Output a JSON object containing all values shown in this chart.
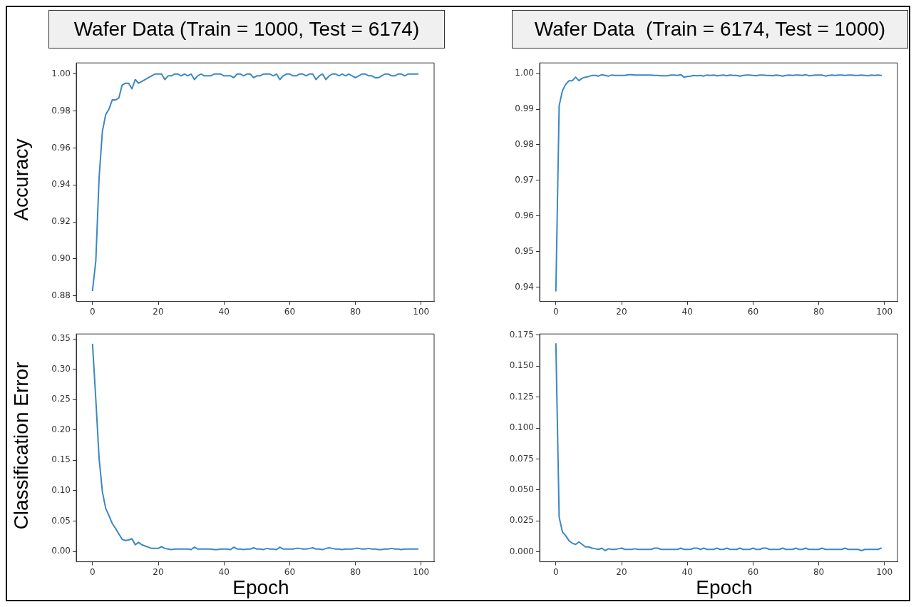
{
  "chart_data": [
    {
      "type": "line",
      "title": "Wafer Data (Train = 1000, Test = 6174)",
      "ylabel": "Accuracy",
      "xlim": [
        -4.95,
        103.95
      ],
      "xticks": [
        0,
        20,
        40,
        60,
        80,
        100
      ],
      "ylim": [
        0.877,
        1.006
      ],
      "yticks": [
        {
          "value": 0.88,
          "label": "0.88"
        },
        {
          "value": 0.9,
          "label": "0.90"
        },
        {
          "value": 0.92,
          "label": "0.92"
        },
        {
          "value": 0.94,
          "label": "0.94"
        },
        {
          "value": 0.96,
          "label": "0.96"
        },
        {
          "value": 0.98,
          "label": "0.98"
        },
        {
          "value": 1.0,
          "label": "1.00"
        }
      ],
      "x": [
        0,
        1,
        2,
        3,
        4,
        5,
        6,
        7,
        8,
        9,
        10,
        11,
        12,
        13,
        14,
        15,
        16,
        17,
        18,
        19,
        20,
        21,
        22,
        23,
        24,
        25,
        26,
        27,
        28,
        29,
        30,
        31,
        32,
        33,
        34,
        35,
        36,
        37,
        38,
        39,
        40,
        41,
        42,
        43,
        44,
        45,
        46,
        47,
        48,
        49,
        50,
        51,
        52,
        53,
        54,
        55,
        56,
        57,
        58,
        59,
        60,
        61,
        62,
        63,
        64,
        65,
        66,
        67,
        68,
        69,
        70,
        71,
        72,
        73,
        74,
        75,
        76,
        77,
        78,
        79,
        80,
        81,
        82,
        83,
        84,
        85,
        86,
        87,
        88,
        89,
        90,
        91,
        92,
        93,
        94,
        95,
        96,
        97,
        98,
        99
      ],
      "series": [
        {
          "color": "#3b87c4",
          "values": [
            0.883,
            0.899,
            0.944,
            0.969,
            0.978,
            0.981,
            0.986,
            0.986,
            0.987,
            0.994,
            0.995,
            0.995,
            0.992,
            0.997,
            0.995,
            0.996,
            0.997,
            0.998,
            0.999,
            1.0,
            1.0,
            1.0,
            0.997,
            0.999,
            0.999,
            1.0,
            1.0,
            0.999,
            1.0,
            0.999,
            1.0,
            0.997,
            0.999,
            1.0,
            0.999,
            0.999,
            0.999,
            1.0,
            1.0,
            1.0,
            0.999,
            0.999,
            0.999,
            0.998,
            1.0,
            1.0,
            0.999,
            1.0,
            1.0,
            0.998,
            0.999,
            0.999,
            1.0,
            1.0,
            1.0,
            0.999,
            1.0,
            0.997,
            0.999,
            1.0,
            1.0,
            0.999,
            0.999,
            1.0,
            1.0,
            0.999,
            1.0,
            1.0,
            0.997,
            0.999,
            1.0,
            0.997,
            0.999,
            1.0,
            1.0,
            0.999,
            1.0,
            0.999,
            1.0,
            0.999,
            0.998,
            0.999,
            1.0,
            1.0,
            0.999,
            0.999,
            0.998,
            0.998,
            0.999,
            1.0,
            1.0,
            0.999,
            0.999,
            1.0,
            1.0,
            0.999,
            1.0,
            1.0,
            1.0,
            1.0
          ]
        }
      ]
    },
    {
      "type": "line",
      "title": "Wafer Data  (Train = 6174, Test = 1000)",
      "xlim": [
        -4.95,
        103.95
      ],
      "xticks": [
        0,
        20,
        40,
        60,
        80,
        100
      ],
      "ylim": [
        0.936,
        1.003
      ],
      "yticks": [
        {
          "value": 0.94,
          "label": "0.94"
        },
        {
          "value": 0.95,
          "label": "0.95"
        },
        {
          "value": 0.96,
          "label": "0.96"
        },
        {
          "value": 0.97,
          "label": "0.97"
        },
        {
          "value": 0.98,
          "label": "0.98"
        },
        {
          "value": 0.99,
          "label": "0.99"
        },
        {
          "value": 1.0,
          "label": "1.00"
        }
      ],
      "x": [
        0,
        1,
        2,
        3,
        4,
        5,
        6,
        7,
        8,
        9,
        10,
        11,
        12,
        13,
        14,
        15,
        16,
        17,
        18,
        19,
        20,
        21,
        22,
        23,
        24,
        25,
        26,
        27,
        28,
        29,
        30,
        31,
        32,
        33,
        34,
        35,
        36,
        37,
        38,
        39,
        40,
        41,
        42,
        43,
        44,
        45,
        46,
        47,
        48,
        49,
        50,
        51,
        52,
        53,
        54,
        55,
        56,
        57,
        58,
        59,
        60,
        61,
        62,
        63,
        64,
        65,
        66,
        67,
        68,
        69,
        70,
        71,
        72,
        73,
        74,
        75,
        76,
        77,
        78,
        79,
        80,
        81,
        82,
        83,
        84,
        85,
        86,
        87,
        88,
        89,
        90,
        91,
        92,
        93,
        94,
        95,
        96,
        97,
        98,
        99
      ],
      "series": [
        {
          "color": "#3b87c4",
          "values": [
            0.939,
            0.991,
            0.9952,
            0.997,
            0.998,
            0.998,
            0.999,
            0.998,
            0.9987,
            0.999,
            0.9992,
            0.9995,
            0.9995,
            0.9993,
            0.9997,
            0.9995,
            0.9993,
            0.9996,
            0.9995,
            0.9995,
            0.9995,
            0.9995,
            0.9997,
            0.9997,
            0.9996,
            0.9996,
            0.9996,
            0.9996,
            0.9996,
            0.9996,
            0.9995,
            0.9995,
            0.9994,
            0.9994,
            0.9994,
            0.9996,
            0.9996,
            0.9995,
            0.9997,
            0.999,
            0.9992,
            0.9993,
            0.9995,
            0.9994,
            0.9995,
            0.9993,
            0.9996,
            0.9995,
            0.9996,
            0.9994,
            0.9995,
            0.9996,
            0.9994,
            0.9996,
            0.9995,
            0.9995,
            0.9993,
            0.9995,
            0.9996,
            0.9996,
            0.9995,
            0.9994,
            0.9996,
            0.9996,
            0.9995,
            0.9995,
            0.9994,
            0.9996,
            0.9995,
            0.9993,
            0.9995,
            0.9996,
            0.9995,
            0.9996,
            0.9996,
            0.9995,
            0.9997,
            0.9994,
            0.9995,
            0.9996,
            0.9996,
            0.9996,
            0.9993,
            0.9995,
            0.9996,
            0.9995,
            0.9996,
            0.9996,
            0.9995,
            0.9996,
            0.9996,
            0.9995,
            0.9995,
            0.9996,
            0.9995,
            0.9994,
            0.9996,
            0.9995,
            0.9996,
            0.9995
          ]
        }
      ]
    },
    {
      "type": "line",
      "ylabel": "Classification Error",
      "xlabel": "Epoch",
      "xlim": [
        -4.95,
        103.95
      ],
      "xticks": [
        0,
        20,
        40,
        60,
        80,
        100
      ],
      "ylim": [
        -0.017,
        0.358
      ],
      "yticks": [
        {
          "value": 0,
          "label": "0.00"
        },
        {
          "value": 0.05,
          "label": "0.05"
        },
        {
          "value": 0.1,
          "label": "0.10"
        },
        {
          "value": 0.15,
          "label": "0.15"
        },
        {
          "value": 0.2,
          "label": "0.20"
        },
        {
          "value": 0.25,
          "label": "0.25"
        },
        {
          "value": 0.3,
          "label": "0.30"
        },
        {
          "value": 0.35,
          "label": "0.35"
        }
      ],
      "x": [
        0,
        1,
        2,
        3,
        4,
        5,
        6,
        7,
        8,
        9,
        10,
        11,
        12,
        13,
        14,
        15,
        16,
        17,
        18,
        19,
        20,
        21,
        22,
        23,
        24,
        25,
        26,
        27,
        28,
        29,
        30,
        31,
        32,
        33,
        34,
        35,
        36,
        37,
        38,
        39,
        40,
        41,
        42,
        43,
        44,
        45,
        46,
        47,
        48,
        49,
        50,
        51,
        52,
        53,
        54,
        55,
        56,
        57,
        58,
        59,
        60,
        61,
        62,
        63,
        64,
        65,
        66,
        67,
        68,
        69,
        70,
        71,
        72,
        73,
        74,
        75,
        76,
        77,
        78,
        79,
        80,
        81,
        82,
        83,
        84,
        85,
        86,
        87,
        88,
        89,
        90,
        91,
        92,
        93,
        94,
        95,
        96,
        97,
        98,
        99
      ],
      "series": [
        {
          "color": "#3b87c4",
          "values": [
            0.341,
            0.25,
            0.153,
            0.098,
            0.071,
            0.059,
            0.046,
            0.038,
            0.029,
            0.02,
            0.018,
            0.019,
            0.021,
            0.011,
            0.015,
            0.011,
            0.009,
            0.007,
            0.005,
            0.005,
            0.005,
            0.008,
            0.005,
            0.004,
            0.003,
            0.004,
            0.004,
            0.004,
            0.004,
            0.004,
            0.003,
            0.007,
            0.004,
            0.004,
            0.004,
            0.004,
            0.004,
            0.003,
            0.003,
            0.004,
            0.004,
            0.004,
            0.003,
            0.007,
            0.004,
            0.004,
            0.003,
            0.004,
            0.004,
            0.006,
            0.004,
            0.004,
            0.003,
            0.005,
            0.004,
            0.004,
            0.003,
            0.007,
            0.004,
            0.004,
            0.004,
            0.004,
            0.005,
            0.005,
            0.004,
            0.004,
            0.005,
            0.006,
            0.004,
            0.004,
            0.003,
            0.005,
            0.006,
            0.005,
            0.004,
            0.004,
            0.003,
            0.004,
            0.004,
            0.004,
            0.005,
            0.005,
            0.004,
            0.004,
            0.005,
            0.004,
            0.004,
            0.003,
            0.003,
            0.004,
            0.004,
            0.005,
            0.004,
            0.004,
            0.003,
            0.004,
            0.004,
            0.004,
            0.004,
            0.004
          ]
        }
      ]
    },
    {
      "type": "line",
      "xlabel": "Epoch",
      "xlim": [
        -4.95,
        103.95
      ],
      "xticks": [
        0,
        20,
        40,
        60,
        80,
        100
      ],
      "ylim": [
        -0.008,
        0.176
      ],
      "yticks": [
        {
          "value": 0,
          "label": "0.000"
        },
        {
          "value": 0.025,
          "label": "0.025"
        },
        {
          "value": 0.05,
          "label": "0.050"
        },
        {
          "value": 0.075,
          "label": "0.075"
        },
        {
          "value": 0.1,
          "label": "0.100"
        },
        {
          "value": 0.125,
          "label": "0.125"
        },
        {
          "value": 0.15,
          "label": "0.150"
        },
        {
          "value": 0.175,
          "label": "0.175"
        }
      ],
      "x": [
        0,
        1,
        2,
        3,
        4,
        5,
        6,
        7,
        8,
        9,
        10,
        11,
        12,
        13,
        14,
        15,
        16,
        17,
        18,
        19,
        20,
        21,
        22,
        23,
        24,
        25,
        26,
        27,
        28,
        29,
        30,
        31,
        32,
        33,
        34,
        35,
        36,
        37,
        38,
        39,
        40,
        41,
        42,
        43,
        44,
        45,
        46,
        47,
        48,
        49,
        50,
        51,
        52,
        53,
        54,
        55,
        56,
        57,
        58,
        59,
        60,
        61,
        62,
        63,
        64,
        65,
        66,
        67,
        68,
        69,
        70,
        71,
        72,
        73,
        74,
        75,
        76,
        77,
        78,
        79,
        80,
        81,
        82,
        83,
        84,
        85,
        86,
        87,
        88,
        89,
        90,
        91,
        92,
        93,
        94,
        95,
        96,
        97,
        98,
        99
      ],
      "series": [
        {
          "color": "#3b87c4",
          "values": [
            0.168,
            0.028,
            0.016,
            0.013,
            0.009,
            0.007,
            0.006,
            0.008,
            0.006,
            0.004,
            0.004,
            0.003,
            0.0025,
            0.002,
            0.003,
            0.001,
            0.0025,
            0.002,
            0.002,
            0.0025,
            0.003,
            0.002,
            0.002,
            0.002,
            0.0025,
            0.002,
            0.002,
            0.002,
            0.002,
            0.002,
            0.003,
            0.003,
            0.002,
            0.002,
            0.002,
            0.002,
            0.002,
            0.002,
            0.003,
            0.002,
            0.002,
            0.002,
            0.003,
            0.003,
            0.002,
            0.003,
            0.002,
            0.002,
            0.002,
            0.003,
            0.002,
            0.002,
            0.003,
            0.002,
            0.002,
            0.002,
            0.003,
            0.002,
            0.002,
            0.002,
            0.003,
            0.002,
            0.002,
            0.003,
            0.003,
            0.002,
            0.002,
            0.002,
            0.002,
            0.003,
            0.002,
            0.002,
            0.002,
            0.003,
            0.002,
            0.002,
            0.003,
            0.002,
            0.002,
            0.002,
            0.002,
            0.003,
            0.002,
            0.002,
            0.002,
            0.002,
            0.002,
            0.002,
            0.003,
            0.002,
            0.002,
            0.002,
            0.002,
            0.001,
            0.002,
            0.002,
            0.002,
            0.002,
            0.002,
            0.003
          ]
        }
      ]
    }
  ]
}
